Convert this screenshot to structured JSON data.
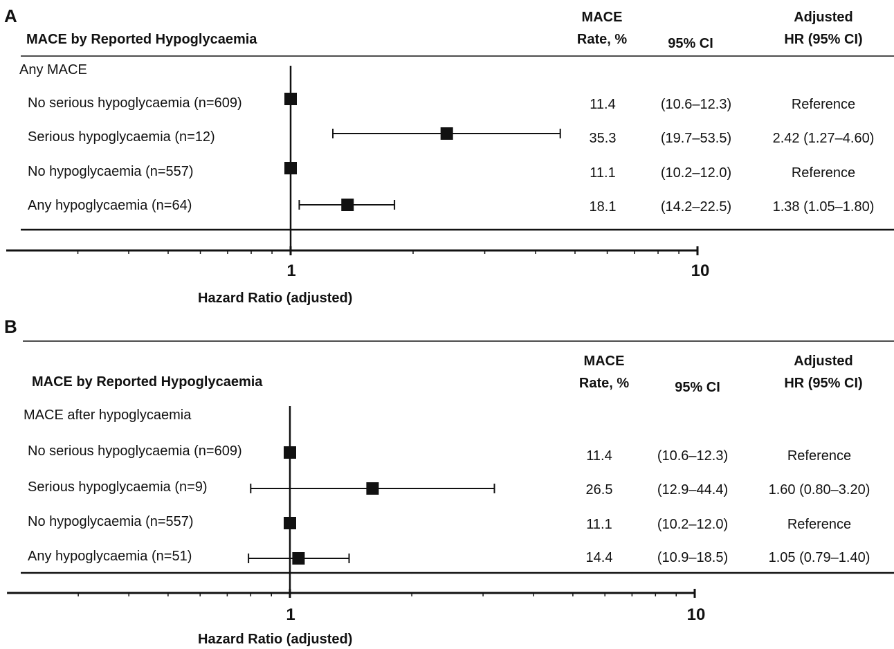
{
  "chart_data": [
    {
      "type": "forest",
      "panel_label": "A",
      "header": "MACE by Reported Hypoglycaemia",
      "columns": {
        "rate_line1": "MACE",
        "rate_line2": "Rate, %",
        "ci": "95% CI",
        "hr_line1": "Adjusted",
        "hr_line2": "HR (95% CI)"
      },
      "section": "Any MACE",
      "xscale": "log",
      "xlim": [
        0.2,
        10
      ],
      "xticks": [
        "1",
        "10"
      ],
      "xlabel": "Hazard Ratio (adjusted)",
      "reference_line": 1,
      "rows": [
        {
          "label": "No serious hypoglycaemia (n=609)",
          "hr": 1.0,
          "lo": 1.0,
          "hi": 1.0,
          "rate": "11.4",
          "ci_text": "(10.6–12.3)",
          "hr_text": "Reference"
        },
        {
          "label": "Serious hypoglycaemia (n=12)",
          "hr": 2.42,
          "lo": 1.27,
          "hi": 4.6,
          "rate": "35.3",
          "ci_text": "(19.7–53.5)",
          "hr_text": "2.42 (1.27–4.60)"
        },
        {
          "label": "No hypoglycaemia (n=557)",
          "hr": 1.0,
          "lo": 1.0,
          "hi": 1.0,
          "rate": "11.1",
          "ci_text": "(10.2–12.0)",
          "hr_text": "Reference"
        },
        {
          "label": "Any hypoglycaemia (n=64)",
          "hr": 1.38,
          "lo": 1.05,
          "hi": 1.8,
          "rate": "18.1",
          "ci_text": "(14.2–22.5)",
          "hr_text": "1.38 (1.05–1.80)"
        }
      ]
    },
    {
      "type": "forest",
      "panel_label": "B",
      "header": "MACE by Reported Hypoglycaemia",
      "columns": {
        "rate_line1": "MACE",
        "rate_line2": "Rate, %",
        "ci": "95% CI",
        "hr_line1": "Adjusted",
        "hr_line2": "HR (95% CI)"
      },
      "section": "MACE after hypoglycaemia",
      "xscale": "log",
      "xlim": [
        0.2,
        10
      ],
      "xticks": [
        "1",
        "10"
      ],
      "xlabel": "Hazard Ratio (adjusted)",
      "reference_line": 1,
      "rows": [
        {
          "label": "No serious hypoglycaemia (n=609)",
          "hr": 1.0,
          "lo": 1.0,
          "hi": 1.0,
          "rate": "11.4",
          "ci_text": "(10.6–12.3)",
          "hr_text": "Reference"
        },
        {
          "label": "Serious hypoglycaemia (n=9)",
          "hr": 1.6,
          "lo": 0.8,
          "hi": 3.2,
          "rate": "26.5",
          "ci_text": "(12.9–44.4)",
          "hr_text": "1.60 (0.80–3.20)"
        },
        {
          "label": "No hypoglycaemia (n=557)",
          "hr": 1.0,
          "lo": 1.0,
          "hi": 1.0,
          "rate": "11.1",
          "ci_text": "(10.2–12.0)",
          "hr_text": "Reference"
        },
        {
          "label": "Any hypoglycaemia (n=51)",
          "hr": 1.05,
          "lo": 0.79,
          "hi": 1.4,
          "rate": "14.4",
          "ci_text": "(10.9–18.5)",
          "hr_text": "1.05 (0.79–1.40)"
        }
      ]
    }
  ]
}
